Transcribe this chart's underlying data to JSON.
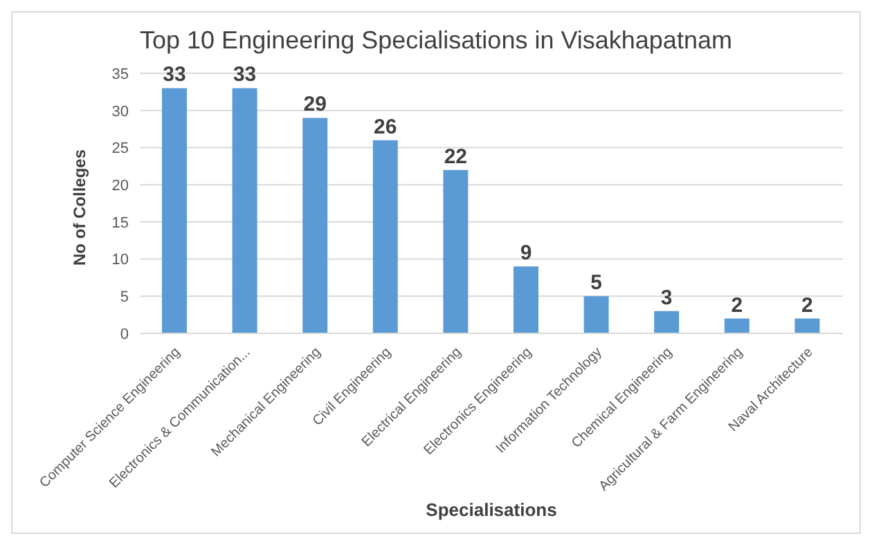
{
  "chart_data": {
    "type": "bar",
    "title": "Top 10 Engineering Specialisations in Visakhapatnam",
    "xlabel": "Specialisations",
    "ylabel": "No of Colleges",
    "categories": [
      "Computer Science Engineering",
      "Electronics & Communication...",
      "Mechanical Engineering",
      "Civil Engineering",
      "Electrical Engineering",
      "Electronics Engineering",
      "Information Technology",
      "Chemical Engineering",
      "Agricultural & Farm Engineering",
      "Naval Architecture"
    ],
    "values": [
      33,
      33,
      29,
      26,
      22,
      9,
      5,
      3,
      2,
      2
    ],
    "color": "#5b9bd5",
    "ylim": [
      0,
      35
    ],
    "yticks": [
      0,
      5,
      10,
      15,
      20,
      25,
      30,
      35
    ],
    "grid": "y",
    "data_labels": true
  }
}
